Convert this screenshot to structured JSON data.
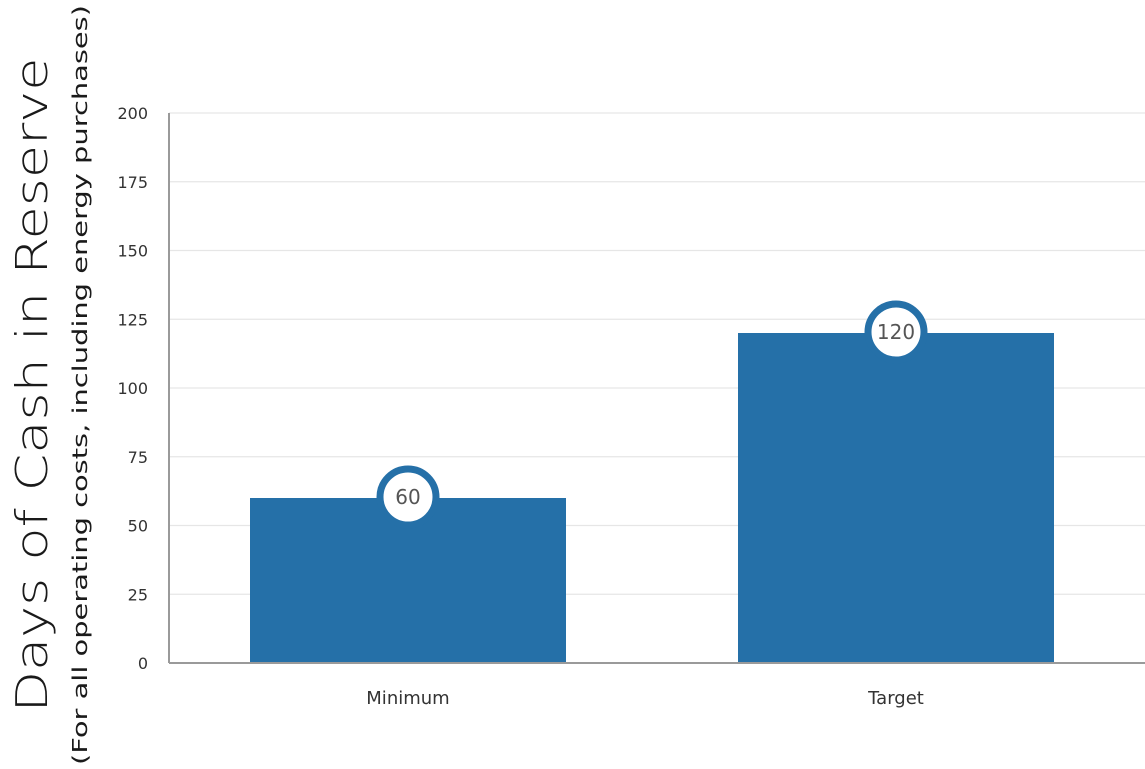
{
  "chart_data": {
    "type": "bar",
    "categories": [
      "Minimum",
      "Target"
    ],
    "values": [
      60,
      120
    ],
    "data_labels": [
      "60",
      "120"
    ],
    "title": "",
    "xlabel": "",
    "ylabel": "Days of Cash in Reserve",
    "ylabel_sub": "(For all operating costs, including energy purchases)",
    "ylim": [
      0,
      200
    ],
    "yticks": [
      0,
      25,
      50,
      75,
      100,
      125,
      150,
      175,
      200
    ],
    "grid": true,
    "legend": "none",
    "colors": {
      "bar": "#2570a8",
      "bubble_ring": "#2570a8",
      "grid": "#e6e6e6",
      "axis": "#9a9a9a"
    }
  }
}
